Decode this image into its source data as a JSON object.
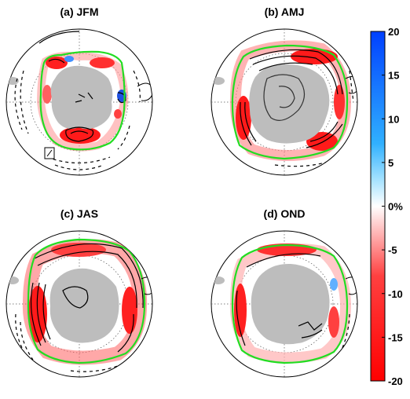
{
  "chart_data": {
    "type": "heatmap",
    "panels": [
      {
        "id": "a",
        "title": "(a) JFM"
      },
      {
        "id": "b",
        "title": "(b) AMJ"
      },
      {
        "id": "c",
        "title": "(c) JAS"
      },
      {
        "id": "d",
        "title": "(d) OND"
      }
    ],
    "colorbar": {
      "min": -20,
      "max": 20,
      "ticks": [
        "20",
        "15",
        "10",
        "5",
        "0%",
        "-5",
        "-10",
        "-15",
        "-20"
      ],
      "colors": {
        "negative": "#ff0000",
        "zero": "#ffffff",
        "positive": "#0000ff",
        "near_zero_positive": "#30c0ff"
      }
    },
    "colors": {
      "land": "#bdbdbd",
      "ice_edge": "#22dd22",
      "contour": "#000000",
      "grid": "#555555"
    },
    "projection": "south-polar-stereographic",
    "grid": true
  }
}
